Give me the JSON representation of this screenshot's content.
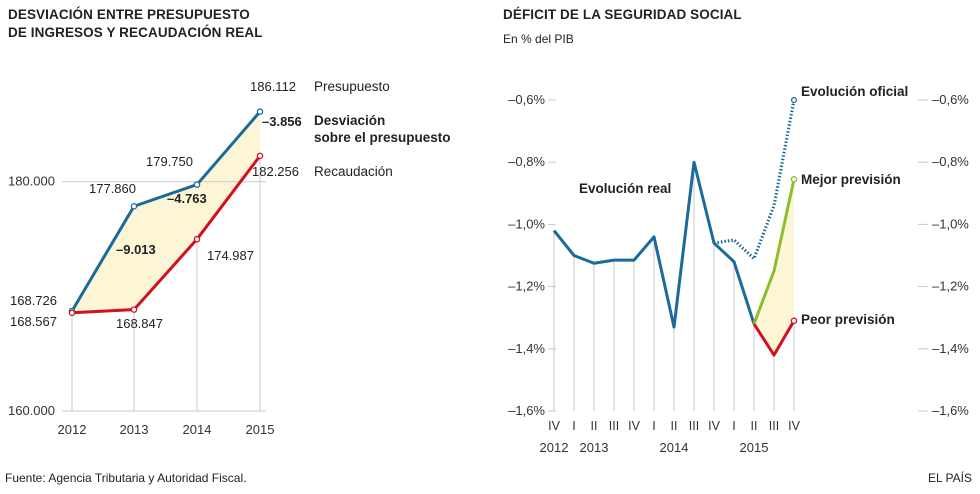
{
  "chart_data": [
    {
      "type": "line",
      "title_line1": "DESVIACIÓN ENTRE PRESUPUESTO",
      "title_line2": "DE INGRESOS Y RECAUDACIÓN REAL",
      "categories": [
        "2012",
        "2013",
        "2014",
        "2015"
      ],
      "y_ticks": [
        "180.000",
        "160.000"
      ],
      "y_tick_values": [
        180000,
        160000
      ],
      "ylim": [
        160000,
        188000
      ],
      "series": [
        {
          "name": "Presupuesto",
          "color": "#1a6a9a",
          "values": [
            168726,
            177860,
            179750,
            186112
          ],
          "labels": [
            "168.726",
            "177.860",
            "179.750",
            "186.112"
          ]
        },
        {
          "name": "Recaudación",
          "color": "#d2101e",
          "values": [
            168567,
            168847,
            174987,
            182256
          ],
          "labels": [
            "168.567",
            "168.847",
            "174.987",
            "182.256"
          ]
        }
      ],
      "deviations": [
        "–9.013",
        "–4.763",
        "–3.856"
      ],
      "deviation_label_line1": "Desviación",
      "deviation_label_line2": "sobre el presupuesto",
      "fill_color": "#fdf6d6"
    },
    {
      "type": "line",
      "title": "DÉFICIT DE LA SEGURIDAD SOCIAL",
      "unit_label": "En % del PIB",
      "y_ticks": [
        "–0,6%",
        "–0,8%",
        "–1,0%",
        "–1,2%",
        "–1,4%",
        "–1,6%"
      ],
      "y_tick_values": [
        -0.6,
        -0.8,
        -1.0,
        -1.2,
        -1.4,
        -1.6
      ],
      "ylim": [
        -1.6,
        -0.6
      ],
      "quarters": [
        "IV",
        "I",
        "II",
        "III",
        "IV",
        "I",
        "II",
        "III",
        "IV",
        "I",
        "II",
        "III",
        "IV"
      ],
      "year_labels": [
        "2012",
        "2013",
        "2014",
        "2015"
      ],
      "year_label_quarter_index": [
        0,
        2,
        6,
        10
      ],
      "quarter_values_note": "values for each quarter listed below",
      "series": [
        {
          "name": "Evolución real",
          "color": "#1a6a9a",
          "style": "solid",
          "points": [
            [
              0,
              -1.02
            ],
            [
              1,
              -1.1
            ],
            [
              2,
              -1.125
            ],
            [
              3,
              -1.115
            ],
            [
              4,
              -1.115
            ],
            [
              5,
              -1.04
            ],
            [
              6,
              -1.33
            ],
            [
              7,
              -0.8
            ],
            [
              8,
              -1.06
            ],
            [
              9,
              -1.12
            ],
            [
              10,
              -1.32
            ]
          ]
        },
        {
          "name": "Evolución oficial",
          "color": "#1a6a9a",
          "style": "dotted",
          "points": [
            [
              8,
              -1.06
            ],
            [
              9,
              -1.05
            ],
            [
              10,
              -1.11
            ],
            [
              11,
              -0.94
            ],
            [
              12,
              -0.6
            ]
          ]
        },
        {
          "name": "Mejor previsión",
          "color": "#8dbd2a",
          "style": "solid",
          "points": [
            [
              10,
              -1.32
            ],
            [
              11,
              -1.15
            ],
            [
              12,
              -0.855
            ]
          ]
        },
        {
          "name": "Peor previsión",
          "color": "#d2101e",
          "style": "solid",
          "points": [
            [
              10,
              -1.32
            ],
            [
              11,
              -1.42
            ],
            [
              12,
              -1.31
            ]
          ]
        }
      ],
      "fill_color": "#fdf6d6"
    }
  ],
  "footer": {
    "source": "Fuente: Agencia Tributaria y Autoridad Fiscal.",
    "brand": "EL PAÍS"
  }
}
